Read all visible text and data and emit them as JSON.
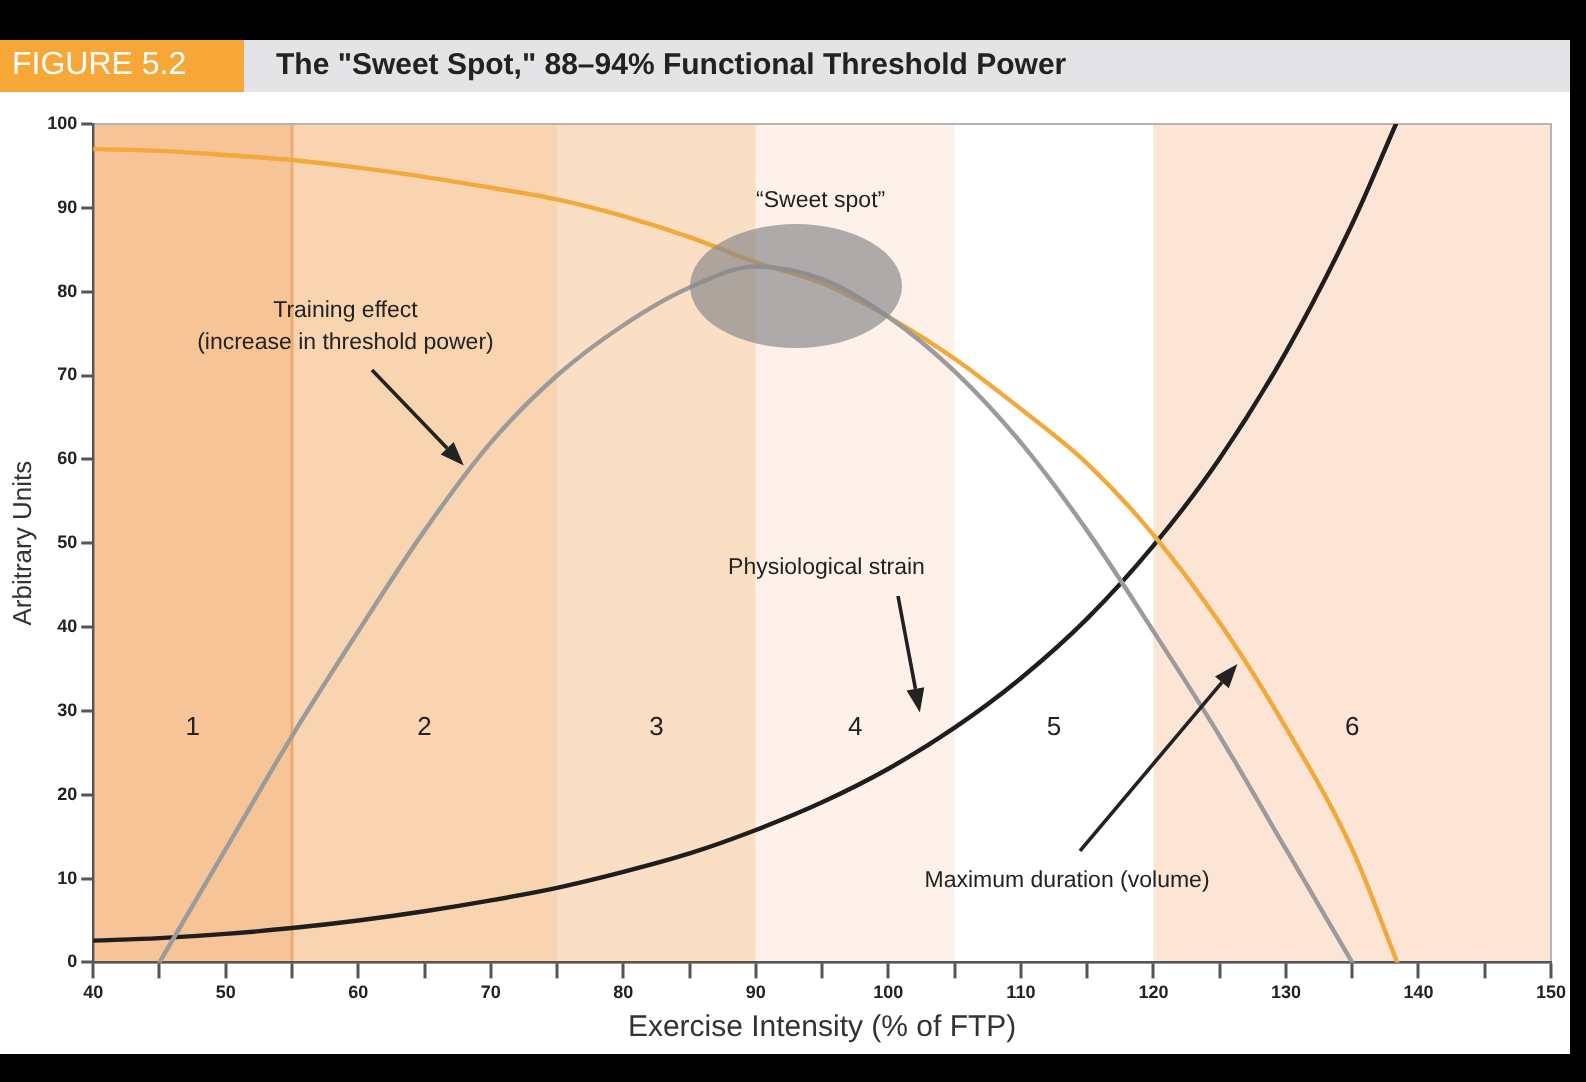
{
  "chart_data": {
    "type": "line",
    "title": "The \"Sweet Spot,\" 88–94% Functional Threshold Power",
    "xlabel": "Exercise Intensity (% of FTP)",
    "ylabel": "Arbitrary Units",
    "xlim": [
      40,
      150
    ],
    "ylim": [
      0,
      100
    ],
    "xticks": [
      40,
      {
        "value": 45,
        "label": null
      },
      50,
      {
        "value": 55,
        "label": null
      },
      60,
      {
        "value": 65,
        "label": null
      },
      70,
      {
        "value": 75,
        "label": null
      },
      80,
      {
        "value": 85,
        "label": null
      },
      90,
      {
        "value": 95,
        "label": null
      },
      100,
      {
        "value": 105,
        "label": null
      },
      110,
      {
        "value": 115,
        "label": null
      },
      120,
      {
        "value": 125,
        "label": null
      },
      130,
      {
        "value": 135,
        "label": null
      },
      140,
      {
        "value": 145,
        "label": null
      },
      150
    ],
    "yticks": [
      0,
      10,
      20,
      30,
      40,
      50,
      60,
      70,
      80,
      90,
      100
    ],
    "marker": "none",
    "series": [
      {
        "color": "#9b9b9b",
        "x": [
          45,
          50,
          55,
          60,
          65,
          70,
          75,
          80,
          85,
          90,
          95,
          100,
          105,
          110,
          115,
          120,
          125,
          130,
          135
        ],
        "values": [
          0,
          13.5,
          27,
          39.5,
          51.5,
          62,
          70,
          76,
          80.5,
          83,
          81.5,
          77,
          70.5,
          62,
          51.5,
          39.5,
          27,
          13.5,
          0
        ]
      },
      {
        "color": "#f0a93a",
        "x": [
          40,
          45,
          50,
          55,
          60,
          65,
          70,
          75,
          80,
          85,
          90,
          95,
          100,
          105,
          110,
          115,
          120,
          125,
          130,
          135,
          138.4
        ],
        "values": [
          97,
          96.8,
          96.3,
          95.7,
          94.8,
          93.7,
          92.4,
          91,
          89,
          86.5,
          83.5,
          81,
          77,
          72,
          66,
          59.5,
          51,
          40.5,
          28,
          13.5,
          0
        ]
      },
      {
        "color": "#1e1e1e",
        "x": [
          40,
          45,
          50,
          55,
          60,
          65,
          70,
          75,
          80,
          85,
          90,
          95,
          100,
          105,
          110,
          115,
          120,
          125,
          130,
          135,
          138.3
        ],
        "values": [
          2.6,
          2.9,
          3.4,
          4.1,
          5,
          6.1,
          7.4,
          8.9,
          10.8,
          13,
          15.8,
          19.1,
          23.1,
          28,
          33.9,
          41,
          49.7,
          60.1,
          72.8,
          88.1,
          100
        ]
      }
    ],
    "bands": [
      {
        "axis": "x",
        "from": 40,
        "to": 55,
        "label": "1",
        "color": "#f6c496"
      },
      {
        "axis": "x",
        "from": 55,
        "to": 75,
        "label": "2",
        "color": "#f9d4b0"
      },
      {
        "axis": "x",
        "from": 75,
        "to": 90,
        "label": "3",
        "color": "#fbdfc4"
      },
      {
        "axis": "x",
        "from": 90,
        "to": 105,
        "label": "4",
        "color": "#fdf1ea"
      },
      {
        "axis": "x",
        "from": 120,
        "to": 150,
        "label": "6",
        "color": "#fce5d4"
      }
    ],
    "ref_lines": [
      {
        "axis": "x",
        "value": 55,
        "color": "#eeab70"
      }
    ],
    "annotations": [
      "FIGURE 5.2",
      "Training effect\n(increase in threshold power)",
      "“Sweet spot”",
      "Physiological strain",
      "Maximum duration (volume)",
      "5"
    ]
  }
}
